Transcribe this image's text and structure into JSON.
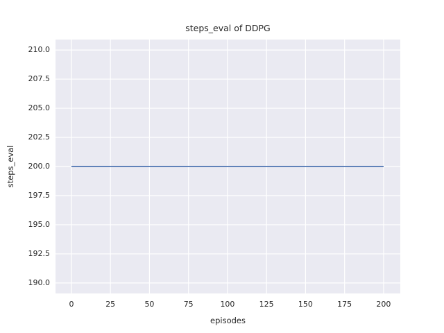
{
  "chart_data": {
    "type": "line",
    "title": "steps_eval of DDPG",
    "xlabel": "episodes",
    "ylabel": "steps_eval",
    "xlim": [
      -10.2,
      210.7
    ],
    "ylim": [
      189.1,
      210.9
    ],
    "grid": true,
    "legend": "none",
    "plot_background": "#eaeaf2",
    "grid_color": "#ffffff",
    "text_color": "#262626",
    "figure_background": "#ffffff",
    "xticks": [
      {
        "v": 0,
        "label": "0"
      },
      {
        "v": 25,
        "label": "25"
      },
      {
        "v": 50,
        "label": "50"
      },
      {
        "v": 75,
        "label": "75"
      },
      {
        "v": 100,
        "label": "100"
      },
      {
        "v": 125,
        "label": "125"
      },
      {
        "v": 150,
        "label": "150"
      },
      {
        "v": 175,
        "label": "175"
      },
      {
        "v": 200,
        "label": "200"
      }
    ],
    "yticks": [
      {
        "v": 190.0,
        "label": "190.0"
      },
      {
        "v": 192.5,
        "label": "192.5"
      },
      {
        "v": 195.0,
        "label": "195.0"
      },
      {
        "v": 197.5,
        "label": "197.5"
      },
      {
        "v": 200.0,
        "label": "200.0"
      },
      {
        "v": 202.5,
        "label": "202.5"
      },
      {
        "v": 205.0,
        "label": "205.0"
      },
      {
        "v": 207.5,
        "label": "207.5"
      },
      {
        "v": 210.0,
        "label": "210.0"
      }
    ],
    "series": [
      {
        "name": "steps_eval",
        "color": "#4c72b0",
        "description": "constant value 200 for every episode from 0 to 200",
        "x": [
          0,
          200
        ],
        "y": [
          200,
          200
        ]
      }
    ]
  }
}
